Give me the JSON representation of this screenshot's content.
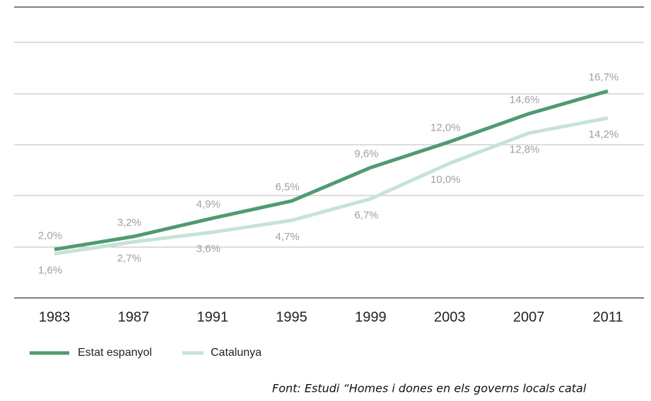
{
  "chart_data": {
    "type": "line",
    "categories": [
      "1983",
      "1987",
      "1991",
      "1995",
      "1999",
      "2003",
      "2007",
      "2011"
    ],
    "series": [
      {
        "name": "Estat espanyol",
        "color": "#4f9a72",
        "values": [
          2.0,
          3.2,
          4.9,
          6.5,
          9.6,
          12.0,
          14.6,
          16.7
        ],
        "value_labels": [
          "2,0%",
          "3,2%",
          "4,9%",
          "6,5%",
          "9,6%",
          "12,0%",
          "14,6%",
          "16,7%"
        ]
      },
      {
        "name": "Catalunya",
        "color": "#c6e3d5",
        "values": [
          1.6,
          2.7,
          3.6,
          4.7,
          6.7,
          10.0,
          12.8,
          14.2
        ],
        "value_labels": [
          "1,6%",
          "2,7%",
          "3,6%",
          "4,7%",
          "6,7%",
          "10,0%",
          "12,8%",
          "14,2%"
        ]
      }
    ],
    "ylim": [
      -2.5,
      24.5
    ],
    "source": "Font: Estudi “Homes i dones en els governs locals catal"
  }
}
